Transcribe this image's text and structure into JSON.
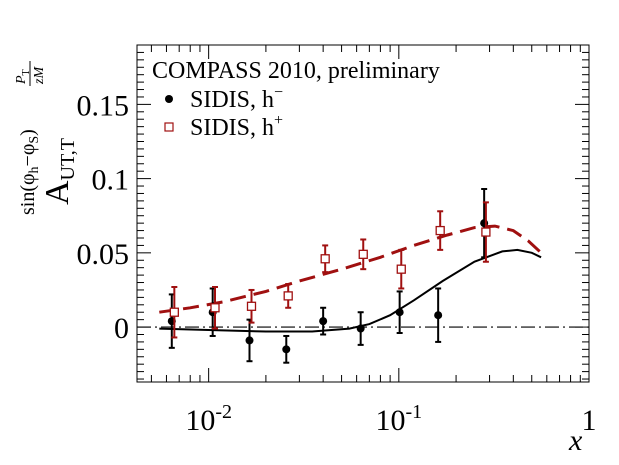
{
  "chart_data": {
    "type": "scatter",
    "title": "COMPASS 2010, preliminary",
    "xlabel": "x",
    "ylabel": {
      "main": "A",
      "main_sub": "UT,T",
      "sup_prefix": "sin(φ",
      "sup_h": "h",
      "sup_mid": "−φ",
      "sup_s": "S",
      "sup_suffix": ")",
      "frac_num": "P",
      "frac_num_sub": "T",
      "frac_den": "zM"
    },
    "x_scale": "log",
    "xlim": [
      0.0042,
      1.0
    ],
    "ylim": [
      -0.037,
      0.19
    ],
    "grid": false,
    "legend_position": "top-left",
    "x_ticks": [
      {
        "value": 0.01,
        "base": "10",
        "exp": "-2"
      },
      {
        "value": 0.1,
        "base": "10",
        "exp": "-1"
      },
      {
        "value": 1,
        "base": "1",
        "exp": ""
      }
    ],
    "y_ticks": [
      {
        "value": 0,
        "label": "0"
      },
      {
        "value": 0.05,
        "label": "0.05"
      },
      {
        "value": 0.1,
        "label": "0.1"
      },
      {
        "value": 0.15,
        "label": "0.15"
      }
    ],
    "series": [
      {
        "name": "SIDIS, h",
        "name_sup": "−",
        "marker": "filled-circle",
        "color": "#000000",
        "x": [
          0.0064,
          0.0105,
          0.0164,
          0.0256,
          0.04,
          0.063,
          0.101,
          0.161,
          0.281
        ],
        "y": [
          0.004,
          0.01,
          -0.009,
          -0.015,
          0.004,
          -0.001,
          0.01,
          0.008,
          0.07
        ],
        "err": [
          0.018,
          0.016,
          0.014,
          0.009,
          0.009,
          0.011,
          0.014,
          0.018,
          0.023
        ]
      },
      {
        "name": "SIDIS, h",
        "name_sup": "+",
        "marker": "open-square",
        "color": "#a01010",
        "x": [
          0.0066,
          0.0108,
          0.0168,
          0.0262,
          0.041,
          0.065,
          0.103,
          0.165,
          0.287
        ],
        "y": [
          0.01,
          0.013,
          0.014,
          0.021,
          0.046,
          0.049,
          0.039,
          0.065,
          0.064
        ],
        "err": [
          0.017,
          0.014,
          0.011,
          0.008,
          0.009,
          0.01,
          0.013,
          0.013,
          0.02
        ]
      }
    ],
    "curves": [
      {
        "name": "h+ model",
        "style": "dashed",
        "color": "#a01010",
        "x": [
          0.0055,
          0.008,
          0.012,
          0.02,
          0.03,
          0.05,
          0.08,
          0.12,
          0.18,
          0.25,
          0.32,
          0.4,
          0.48,
          0.56
        ],
        "y": [
          0.01,
          0.013,
          0.017,
          0.024,
          0.031,
          0.039,
          0.047,
          0.055,
          0.062,
          0.067,
          0.068,
          0.065,
          0.058,
          0.05
        ]
      },
      {
        "name": "h- model",
        "style": "solid",
        "color": "#000000",
        "x": [
          0.0055,
          0.01,
          0.02,
          0.035,
          0.055,
          0.07,
          0.09,
          0.12,
          0.17,
          0.25,
          0.35,
          0.42,
          0.5,
          0.56
        ],
        "y": [
          -0.001,
          -0.002,
          -0.003,
          -0.003,
          -0.001,
          0.002,
          0.008,
          0.018,
          0.031,
          0.044,
          0.051,
          0.052,
          0.05,
          0.047
        ]
      }
    ],
    "reference_line": {
      "y": 0,
      "style": "dash-dot"
    }
  }
}
